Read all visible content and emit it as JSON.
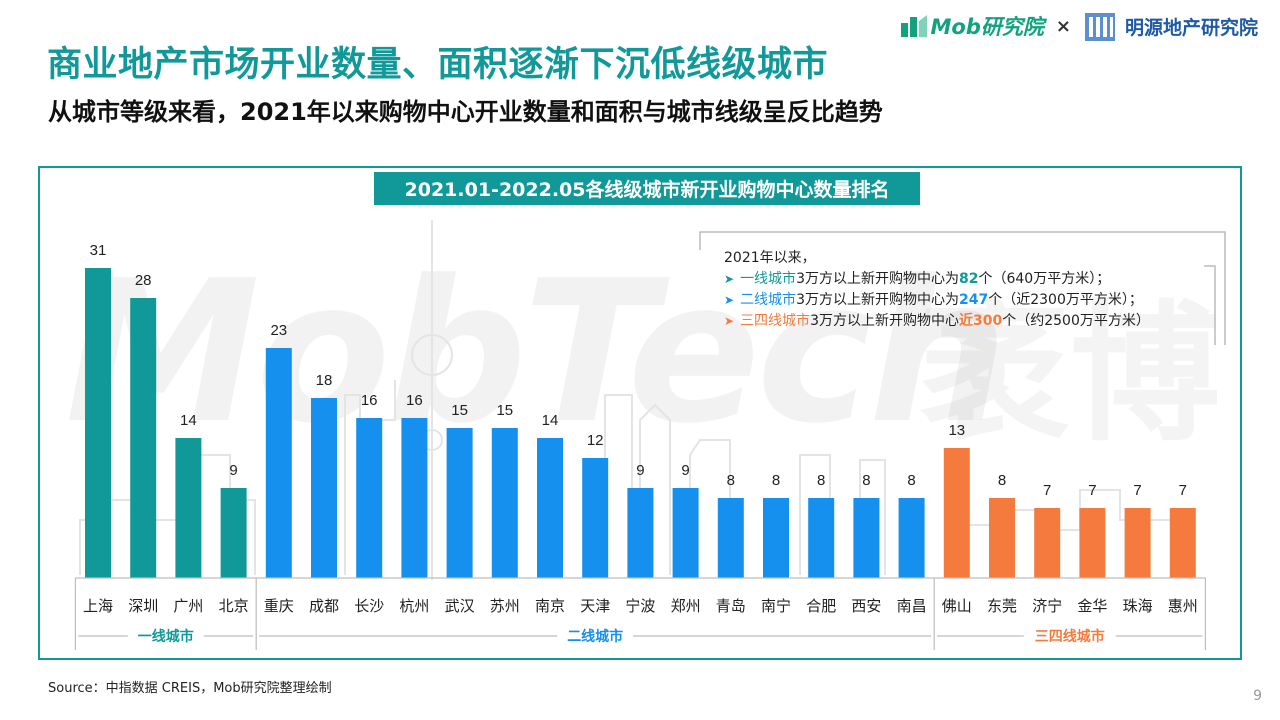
{
  "header": {
    "title": "商业地产市场开业数量、面积逐渐下沉低线级城市",
    "subtitle": "从城市等级来看，2021年以来购物中心开业数量和面积与城市线级呈反比趋势",
    "logo_mob": "Mob研究院",
    "logo_x": "×",
    "logo_ming": "明源地产研究院"
  },
  "watermark": {
    "text": "MobTech",
    "cn": "袤博"
  },
  "annotation": {
    "intro": "2021年以来，",
    "line1": {
      "prefix": "一线城市",
      "mid": "3万方以上新开购物中心为",
      "num": "82",
      "suffix": "个（640万平方米）；"
    },
    "line2": {
      "prefix": "二线城市",
      "mid": "3万方以上新开购物中心为",
      "num": "247",
      "suffix": "个（近2300万平方米）；"
    },
    "line3": {
      "prefix": "三四线城市",
      "mid": "3万方以上新开购物中心",
      "num": "近300",
      "suffix": "个（约2500万平方米）"
    }
  },
  "chart_data": {
    "type": "bar",
    "title": "2021.01-2022.05各线级城市新开业购物中心数量排名",
    "categories": [
      "上海",
      "深圳",
      "广州",
      "北京",
      "重庆",
      "成都",
      "长沙",
      "杭州",
      "武汉",
      "苏州",
      "南京",
      "天津",
      "宁波",
      "郑州",
      "青岛",
      "南宁",
      "合肥",
      "西安",
      "南昌",
      "佛山",
      "东莞",
      "济宁",
      "金华",
      "珠海",
      "惠州"
    ],
    "values": [
      31,
      28,
      14,
      9,
      23,
      18,
      16,
      16,
      15,
      15,
      14,
      12,
      9,
      9,
      8,
      8,
      8,
      8,
      8,
      13,
      8,
      7,
      7,
      7,
      7
    ],
    "groups": [
      {
        "name": "一线城市",
        "start": 0,
        "end": 3,
        "color": "#11999a"
      },
      {
        "name": "二线城市",
        "start": 4,
        "end": 18,
        "color": "#1590ef"
      },
      {
        "name": "三四线城市",
        "start": 19,
        "end": 24,
        "color": "#f47b3d"
      }
    ],
    "data_labels": true,
    "grid": false,
    "ylim": [
      0,
      31
    ]
  },
  "footer": {
    "source": "Source：中指数据 CREIS，Mob研究院整理绘制",
    "page": "9"
  }
}
